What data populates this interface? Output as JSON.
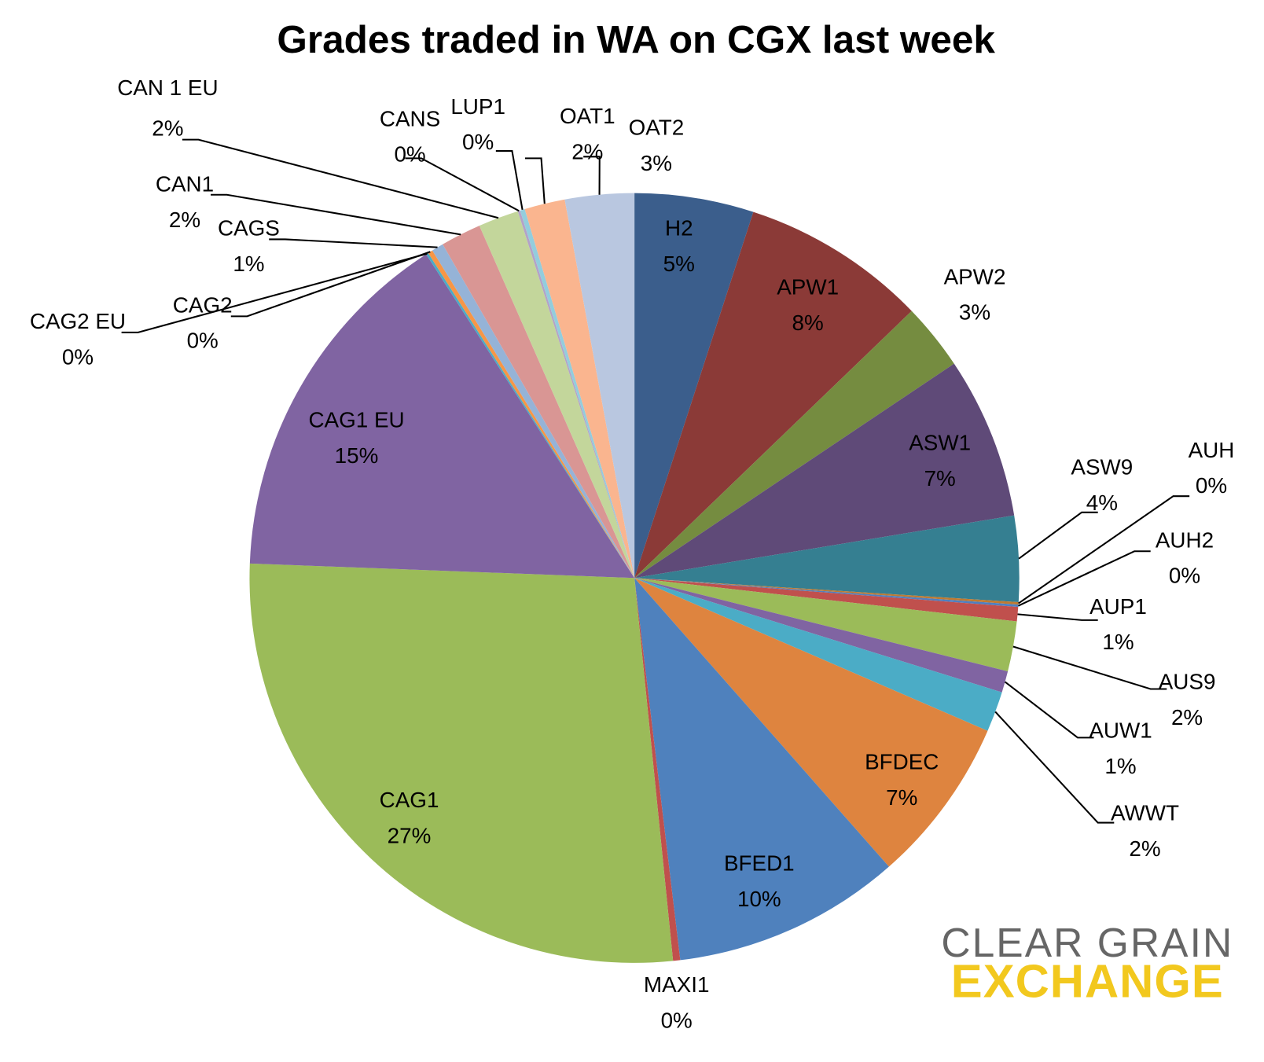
{
  "chart_data": {
    "type": "pie",
    "title": "Grades traded in WA on CGX last week",
    "categories": [
      "H2",
      "APW1",
      "APW2",
      "ASW1",
      "ASW9",
      "AUH",
      "AUH2",
      "AUP1",
      "AUS9",
      "AUW1",
      "AWWT",
      "BFDEC",
      "BFED1",
      "MAXI1",
      "CAG1",
      "CAG1 EU",
      "CAG2 EU",
      "CAG2",
      "CAGS",
      "CAN1",
      "CAN 1 EU",
      "CANS",
      "LUP1",
      "OAT1",
      "OAT2"
    ],
    "values": [
      5.0,
      7.8,
      2.8,
      6.8,
      3.6,
      0.1,
      0.1,
      0.6,
      2.1,
      0.9,
      1.7,
      7.0,
      9.6,
      0.3,
      27.2,
      15.3,
      0.1,
      0.2,
      0.5,
      1.7,
      1.7,
      0.1,
      0.2,
      1.7,
      2.9
    ],
    "value_labels": [
      "5%",
      "8%",
      "3%",
      "7%",
      "4%",
      "0%",
      "0%",
      "1%",
      "2%",
      "1%",
      "2%",
      "7%",
      "10%",
      "0%",
      "27%",
      "15%",
      "0%",
      "0%",
      "1%",
      "2%",
      "2%",
      "0%",
      "0%",
      "2%",
      "3%"
    ],
    "colors": [
      "#3b5e8c",
      "#8b3a37",
      "#758c40",
      "#5f4a78",
      "#357f91",
      "#c07a30",
      "#4f7fbf",
      "#c0504d",
      "#9bbb59",
      "#8064a2",
      "#4bacc6",
      "#de843f",
      "#4f81bd",
      "#c0504d",
      "#9bbb59",
      "#8064a2",
      "#4bacc6",
      "#f79646",
      "#95b3d7",
      "#d99694",
      "#c3d69b",
      "#b3a2c7",
      "#93cddd",
      "#fab58f",
      "#b9c7e0"
    ]
  },
  "logo": {
    "line1": "CLEAR GRAIN",
    "line2": "EXCHANGE"
  }
}
